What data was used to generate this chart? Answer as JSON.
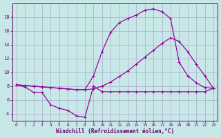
{
  "background_color": "#c8e8e8",
  "line_color": "#990099",
  "grid_color": "#aaaacc",
  "xlabel": "Windchill (Refroidissement éolien,°C)",
  "xlabel_color": "#660066",
  "tick_color": "#660066",
  "ylim": [
    3.0,
    20.0
  ],
  "xlim": [
    -0.5,
    23.5
  ],
  "yticks": [
    4,
    6,
    8,
    10,
    12,
    14,
    16,
    18
  ],
  "xticks": [
    0,
    1,
    2,
    3,
    4,
    5,
    6,
    7,
    8,
    9,
    10,
    11,
    12,
    13,
    14,
    15,
    16,
    17,
    18,
    19,
    20,
    21,
    22,
    23
  ],
  "series1_x": [
    0,
    1,
    2,
    3,
    4,
    5,
    6,
    7,
    8,
    9,
    10,
    11,
    12,
    13,
    14,
    15,
    16,
    17,
    18,
    19,
    20,
    21,
    22,
    23
  ],
  "series1_y": [
    8.2,
    7.9,
    7.1,
    7.1,
    5.3,
    4.8,
    4.5,
    3.7,
    3.5,
    8.0,
    7.2,
    7.2,
    7.2,
    7.2,
    7.2,
    7.2,
    7.2,
    7.2,
    7.2,
    7.2,
    7.2,
    7.2,
    7.2,
    7.7
  ],
  "series2_x": [
    0,
    1,
    2,
    3,
    4,
    5,
    6,
    7,
    8,
    9,
    10,
    11,
    12,
    13,
    14,
    15,
    16,
    17,
    18,
    19,
    20,
    21,
    22,
    23
  ],
  "series2_y": [
    8.2,
    8.1,
    8.0,
    7.9,
    7.8,
    7.7,
    7.6,
    7.5,
    7.5,
    7.6,
    8.0,
    8.6,
    9.4,
    10.2,
    11.2,
    12.2,
    13.2,
    14.2,
    15.0,
    14.5,
    13.0,
    11.2,
    9.5,
    7.7
  ],
  "series3_x": [
    0,
    1,
    2,
    3,
    4,
    5,
    6,
    7,
    8,
    9,
    10,
    11,
    12,
    13,
    14,
    15,
    16,
    17,
    18,
    19,
    20,
    21,
    22,
    23
  ],
  "series3_y": [
    8.2,
    8.1,
    8.0,
    7.9,
    7.8,
    7.7,
    7.6,
    7.5,
    7.5,
    9.5,
    13.0,
    15.8,
    17.2,
    17.8,
    18.3,
    19.0,
    19.2,
    18.8,
    17.8,
    11.5,
    9.5,
    8.5,
    7.8,
    7.7
  ]
}
